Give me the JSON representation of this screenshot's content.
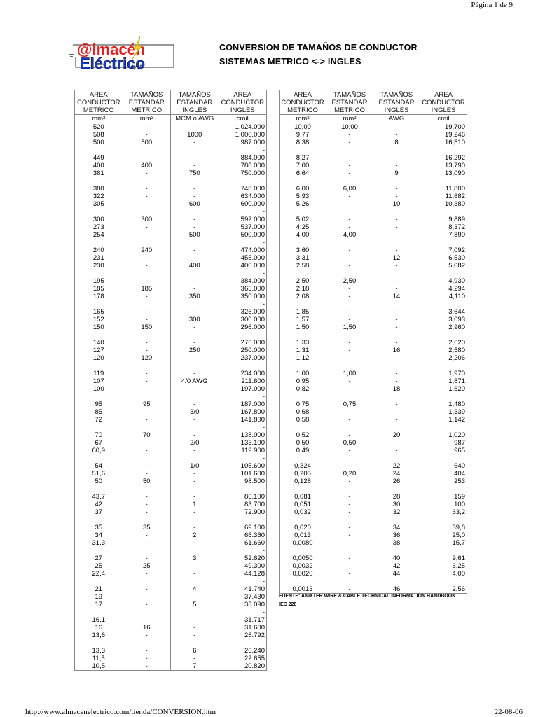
{
  "page_label": "Página 1 de 9",
  "footer_url": "http://www.almacenelectrico.com/tienda/CONVERSION.htm",
  "footer_date": "22-08-06",
  "logo": {
    "line1": "@lmacén",
    "line2": "Eléctrico"
  },
  "title1": "CONVERSION DE TAMAÑOS DE CONDUCTOR",
  "title2": "SISTEMAS METRICO <-> INGLES",
  "left_table": {
    "headers": [
      [
        "AREA",
        "CONDUCTOR",
        "METRICO"
      ],
      [
        "TAMAÑOS",
        "ESTANDAR",
        "METRICO"
      ],
      [
        "TAMAÑOS",
        "ESTANDAR",
        "INGLES"
      ],
      [
        "AREA",
        "CONDUCTOR",
        "INGLES"
      ]
    ],
    "units": [
      "mm²",
      "mm²",
      "MCM o AWG",
      "cmil"
    ],
    "groups": [
      [
        [
          "520",
          "-",
          "-",
          "1.024.000"
        ],
        [
          "508",
          "-",
          "1000",
          "1.000.000"
        ],
        [
          "500",
          "500",
          "-",
          "987.000"
        ]
      ],
      [
        [
          "449",
          "-",
          "-",
          "884.000"
        ],
        [
          "400",
          "400",
          "-",
          "788.000"
        ],
        [
          "381",
          "-",
          "750",
          "750.000"
        ]
      ],
      [
        [
          "380",
          "-",
          "-",
          "748.000"
        ],
        [
          "322",
          "-",
          "-",
          "634.000"
        ],
        [
          "305",
          "-",
          "600",
          "600.000"
        ]
      ],
      [
        [
          "300",
          "300",
          "-",
          "592.000"
        ],
        [
          "273",
          "-",
          "-",
          "537.000"
        ],
        [
          "254",
          "-",
          "500",
          "500.000"
        ]
      ],
      [
        [
          "240",
          "240",
          "-",
          "474.000"
        ],
        [
          "231",
          "-",
          "-",
          "455.000"
        ],
        [
          "230",
          "-",
          "400",
          "400.000"
        ]
      ],
      [
        [
          "195",
          "-",
          "-",
          "384.000"
        ],
        [
          "185",
          "185",
          "-",
          "365.000"
        ],
        [
          "178",
          "-",
          "350",
          "350.000"
        ]
      ],
      [
        [
          "165",
          "-",
          "-",
          "325.000"
        ],
        [
          "152",
          "-",
          "300",
          "300.000"
        ],
        [
          "150",
          "150",
          "-",
          "296.000"
        ]
      ],
      [
        [
          "140",
          "-",
          "-",
          "276.000"
        ],
        [
          "127",
          "-",
          "250",
          "250.000"
        ],
        [
          "120",
          "120",
          "-",
          "237.000"
        ]
      ],
      [
        [
          "119",
          "-",
          "-",
          "234.000"
        ],
        [
          "107",
          "-",
          "4/0 AWG",
          "211.600"
        ],
        [
          "100",
          "-",
          "-",
          "197.000"
        ]
      ],
      [
        [
          "95",
          "95",
          "-",
          "187.000"
        ],
        [
          "85",
          "-",
          "3/0",
          "167.800"
        ],
        [
          "72",
          "-",
          "-",
          "141.800"
        ]
      ],
      [
        [
          "70",
          "70",
          "-",
          "138.000"
        ],
        [
          "67",
          "-",
          "2/0",
          "133.100"
        ],
        [
          "60,9",
          "-",
          "-",
          "119.900"
        ]
      ],
      [
        [
          "54",
          "-",
          "1/0",
          "105.600"
        ],
        [
          "51,6",
          "-",
          "-",
          "101.600"
        ],
        [
          "50",
          "50",
          "-",
          "98.500"
        ]
      ],
      [
        [
          "43,7",
          "-",
          "-",
          "86.100"
        ],
        [
          "42",
          "-",
          "1",
          "83.700"
        ],
        [
          "37",
          "-",
          "-",
          "72.900"
        ]
      ],
      [
        [
          "35",
          "35",
          "-",
          "69.100"
        ],
        [
          "34",
          "-",
          "2",
          "66.360"
        ],
        [
          "31,3",
          "-",
          "-",
          "61.660"
        ]
      ],
      [
        [
          "27",
          "-",
          "3",
          "52.620"
        ],
        [
          "25",
          "25",
          "-",
          "49.300"
        ],
        [
          "22,4",
          "-",
          "-",
          "44.128"
        ]
      ],
      [
        [
          "21",
          "-",
          "4",
          "41.740"
        ],
        [
          "19",
          "-",
          "-",
          "37.430"
        ],
        [
          "17",
          "-",
          "5",
          "33.090"
        ]
      ],
      [
        [
          "16,1",
          "-",
          "-",
          "31.717"
        ],
        [
          "16",
          "16",
          "-",
          "31.600"
        ],
        [
          "13,6",
          "-",
          "-",
          "26.792"
        ]
      ],
      [
        [
          "13,3",
          "-",
          "6",
          "26.240"
        ],
        [
          "11,5",
          "-",
          "-",
          "22.655"
        ],
        [
          "10,5",
          "-",
          "7",
          "20.820"
        ]
      ]
    ],
    "spacer": "-"
  },
  "right_table": {
    "headers": [
      [
        "AREA",
        "CONDUCTOR",
        "METRICO"
      ],
      [
        "TAMAÑOS",
        "ESTANDAR",
        "METRICO"
      ],
      [
        "TAMAÑOS",
        "ESTANDAR",
        "INGLES"
      ],
      [
        "AREA",
        "CONDUCTOR",
        "INGLES"
      ]
    ],
    "units": [
      "mm²",
      "mm²",
      "AWG",
      "cmil"
    ],
    "groups": [
      [
        [
          "10,00",
          "10,00",
          "-",
          "19,700"
        ],
        [
          "9,77",
          "-",
          "-",
          "19,246"
        ],
        [
          "8,38",
          "-",
          "8",
          "16,510"
        ]
      ],
      [
        [
          "8,27",
          "-",
          "-",
          "16,292"
        ],
        [
          "7,00",
          "-",
          "-",
          "13,790"
        ],
        [
          "6,64",
          "-",
          "9",
          "13,090"
        ]
      ],
      [
        [
          "6,00",
          "6,00",
          "-",
          "11,800"
        ],
        [
          "5,93",
          "-",
          "-",
          "11,682"
        ],
        [
          "5,26",
          "-",
          "10",
          "10,380"
        ]
      ],
      [
        [
          "5,02",
          "-",
          "-",
          "9,889"
        ],
        [
          "4,25",
          "-",
          "-",
          "8,372"
        ],
        [
          "4,00",
          "4,00",
          "-",
          "7,890"
        ]
      ],
      [
        [
          "3,60",
          "-",
          "-",
          "7,092"
        ],
        [
          "3,31",
          "-",
          "12",
          "6,530"
        ],
        [
          "2,58",
          "-",
          "-",
          "5,082"
        ]
      ],
      [
        [
          "2,50",
          "2,50",
          "-",
          "4,930"
        ],
        [
          "2,18",
          "-",
          "-",
          "4,294"
        ],
        [
          "2,08",
          "-",
          "14",
          "4,110"
        ]
      ],
      [
        [
          "1,85",
          "-",
          "-",
          "3,644"
        ],
        [
          "1,57",
          "-",
          "-",
          "3,093"
        ],
        [
          "1,50",
          "1,50",
          "-",
          "2,960"
        ]
      ],
      [
        [
          "1,33",
          "-",
          "-",
          "2,620"
        ],
        [
          "1,31",
          "-",
          "16",
          "2,580"
        ],
        [
          "1,12",
          "-",
          "-",
          "2,206"
        ]
      ],
      [
        [
          "1,00",
          "1,00",
          "-",
          "1,970"
        ],
        [
          "0,95",
          "-",
          "-",
          "1,871"
        ],
        [
          "0,82",
          "-",
          "18",
          "1,620"
        ]
      ],
      [
        [
          "0,75",
          "0,75",
          "-",
          "1,480"
        ],
        [
          "0,68",
          "-",
          "-",
          "1,339"
        ],
        [
          "0,58",
          "-",
          "-",
          "1,142"
        ]
      ],
      [
        [
          "0,52",
          "-",
          "20",
          "1,020"
        ],
        [
          "0,50",
          "0,50",
          "-",
          "987"
        ],
        [
          "0,49",
          "-",
          "-",
          "965"
        ]
      ],
      [
        [
          "0,324",
          "-",
          "22",
          "640"
        ],
        [
          "0,205",
          "0,20",
          "24",
          "404"
        ],
        [
          "0,128",
          "-",
          "26",
          "253"
        ]
      ],
      [
        [
          "0,081",
          "-",
          "28",
          "159"
        ],
        [
          "0,051",
          "-",
          "30",
          "100"
        ],
        [
          "0,032",
          "-",
          "32",
          "63,2"
        ]
      ],
      [
        [
          "0,020",
          "-",
          "34",
          "39,8"
        ],
        [
          "0,013",
          "-",
          "36",
          "25,0"
        ],
        [
          "0,0080",
          "-",
          "38",
          "15,7"
        ]
      ],
      [
        [
          "0,0050",
          "-",
          "40",
          "9,61"
        ],
        [
          "0,0032",
          "-",
          "42",
          "6,25"
        ],
        [
          "0,0020",
          "-",
          "44",
          "4,00"
        ]
      ],
      [
        [
          "0,0013",
          "-",
          "46",
          "2,56"
        ]
      ]
    ],
    "spacer": ""
  },
  "source_note": "FUENTE:  ANIXTER WIRE & CABLE TECHNICAL INFORMATION HANDBOOK",
  "standard_note": "IEC 228",
  "colors": {
    "logo_red": "#e02020",
    "logo_blue": "#1a3cc8",
    "logo_bolt": "#f2d21a"
  }
}
